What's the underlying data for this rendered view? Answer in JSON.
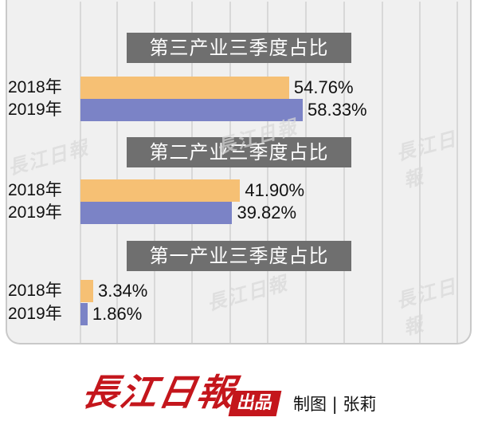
{
  "chart_data": {
    "type": "bar",
    "orientation": "horizontal",
    "unit": "%",
    "groups": [
      {
        "title": "第三产业三季度占比",
        "items": [
          {
            "year": "2018年",
            "value": 54.76,
            "label": "54.76%"
          },
          {
            "year": "2019年",
            "value": 58.33,
            "label": "58.33%"
          }
        ]
      },
      {
        "title": "第二产业三季度占比",
        "items": [
          {
            "year": "2018年",
            "value": 41.9,
            "label": "41.90%"
          },
          {
            "year": "2019年",
            "value": 39.82,
            "label": "39.82%"
          }
        ]
      },
      {
        "title": "第一产业三季度占比",
        "items": [
          {
            "year": "2018年",
            "value": 3.34,
            "label": "3.34%"
          },
          {
            "year": "2019年",
            "value": 1.86,
            "label": "1.86%"
          }
        ]
      }
    ],
    "grid": true,
    "colors": {
      "2018年": "#f6c074",
      "2019年": "#7b83c6",
      "title_bg": "#6f6f6f",
      "panel_bg": "#f0f0f0"
    }
  },
  "watermark": "長江日報",
  "footer": {
    "logo": "長江日報",
    "badge": "出品",
    "credit": "制图 | 张莉"
  }
}
